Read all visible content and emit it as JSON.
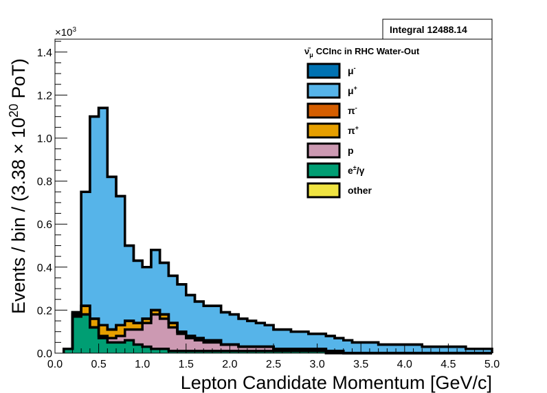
{
  "chart_data": {
    "type": "area",
    "stacked": true,
    "xlabel": "Lepton Candidate Momentum [GeV/c]",
    "ylabel": "Events / bin / (3.38 × 10^20 PoT)",
    "ylabel_prefix": "Events / bin / (3.38 ",
    "ylabel_times": "×",
    "ylabel_ten": " 10",
    "ylabel_exp": "20",
    "ylabel_suffix": " PoT)",
    "y_multiplier": "×10",
    "y_multiplier_exp": "3",
    "xlim": [
      0,
      5
    ],
    "ylim": [
      0,
      1.46
    ],
    "x_ticks": [
      "0.0",
      "0.5",
      "1.0",
      "1.5",
      "2.0",
      "2.5",
      "3.0",
      "3.5",
      "4.0",
      "4.5",
      "5.0"
    ],
    "y_ticks": [
      "0.0",
      "0.2",
      "0.4",
      "0.6",
      "0.8",
      "1.0",
      "1.2",
      "1.4"
    ],
    "legend_header": "CCInc in RHC Water-Out",
    "legend_header_symbol": "ν̄",
    "legend_header_sub": "μ",
    "stat_box": "Integral 12488.14",
    "legend_placement": "top-right",
    "bin_edges": [
      0.1,
      0.2,
      0.3,
      0.4,
      0.5,
      0.6,
      0.7,
      0.8,
      0.9,
      1.0,
      1.1,
      1.2,
      1.3,
      1.4,
      1.5,
      1.6,
      1.7,
      1.8,
      1.9,
      2.0,
      2.1,
      2.2,
      2.3,
      2.4,
      2.5,
      2.6,
      2.7,
      2.8,
      2.9,
      3.0,
      3.1,
      3.2,
      3.3,
      3.4,
      3.5,
      3.6,
      3.7,
      3.8,
      3.9,
      4.0,
      4.1,
      4.2,
      4.3,
      4.4,
      4.5,
      4.6,
      4.7,
      4.8,
      4.9,
      5.0
    ],
    "series": [
      {
        "name": "μ-",
        "label_base": "μ",
        "label_sup": "-",
        "color": "#0072b2",
        "values": [
          0,
          0,
          0,
          0,
          0,
          0,
          0,
          0,
          0,
          0,
          0,
          0,
          0,
          0,
          0,
          0,
          0,
          0,
          0,
          0,
          0,
          0,
          0,
          0,
          0,
          0,
          0,
          0,
          0,
          0,
          0,
          0,
          0,
          0,
          0,
          0,
          0,
          0,
          0,
          0,
          0,
          0,
          0,
          0,
          0,
          0,
          0,
          0,
          0
        ]
      },
      {
        "name": "μ+",
        "label_base": "μ",
        "label_sup": "+",
        "color": "#56b4e9",
        "values": [
          0.0,
          0.01,
          0.53,
          0.94,
          1.01,
          0.71,
          0.6,
          0.35,
          0.29,
          0.24,
          0.28,
          0.24,
          0.22,
          0.22,
          0.19,
          0.17,
          0.16,
          0.16,
          0.15,
          0.14,
          0.13,
          0.12,
          0.11,
          0.1,
          0.09,
          0.09,
          0.08,
          0.08,
          0.07,
          0.07,
          0.07,
          0.06,
          0.06,
          0.05,
          0.05,
          0.05,
          0.04,
          0.04,
          0.04,
          0.04,
          0.04,
          0.03,
          0.03,
          0.03,
          0.03,
          0.03,
          0.02,
          0.02,
          0.02
        ]
      },
      {
        "name": "π-",
        "label_base": "π",
        "label_sup": "-",
        "color": "#d55e00",
        "values": [
          0,
          0,
          0,
          0,
          0,
          0,
          0,
          0,
          0,
          0,
          0,
          0,
          0,
          0,
          0,
          0,
          0,
          0,
          0,
          0,
          0,
          0,
          0,
          0,
          0,
          0,
          0,
          0,
          0,
          0,
          0,
          0,
          0,
          0,
          0,
          0,
          0,
          0,
          0,
          0,
          0,
          0,
          0,
          0,
          0,
          0,
          0,
          0,
          0
        ]
      },
      {
        "name": "π+",
        "label_base": "π",
        "label_sup": "+",
        "color": "#e69f00",
        "values": [
          0.0,
          0.01,
          0.04,
          0.04,
          0.05,
          0.04,
          0.05,
          0.04,
          0.03,
          0.02,
          0.02,
          0.02,
          0.02,
          0.01,
          0.01,
          0.01,
          0.01,
          0.01,
          0.0,
          0.0,
          0.0,
          0.0,
          0.0,
          0.0,
          0.0,
          0.0,
          0.0,
          0.0,
          0.0,
          0.0,
          0.0,
          0.0,
          0.0,
          0.0,
          0.0,
          0.0,
          0.0,
          0.0,
          0.0,
          0.0,
          0.0,
          0.0,
          0.0,
          0.0,
          0.0,
          0.0,
          0.0,
          0.0,
          0.0
        ]
      },
      {
        "name": "p",
        "label_base": "p",
        "label_sup": "",
        "color": "#cc99b2",
        "values": [
          0.0,
          0.0,
          0.0,
          0.0,
          0.01,
          0.02,
          0.03,
          0.05,
          0.07,
          0.11,
          0.16,
          0.14,
          0.11,
          0.08,
          0.06,
          0.05,
          0.04,
          0.04,
          0.03,
          0.03,
          0.02,
          0.02,
          0.02,
          0.02,
          0.01,
          0.01,
          0.01,
          0.01,
          0.01,
          0.01,
          0.01,
          0.01,
          0.0,
          0.0,
          0.0,
          0.0,
          0.0,
          0.0,
          0.0,
          0.0,
          0.0,
          0.0,
          0.0,
          0.0,
          0.0,
          0.0,
          0.0,
          0.0,
          0.0
        ]
      },
      {
        "name": "e±/γ",
        "label_base": "e",
        "label_sup": "±",
        "label_tail": "/γ",
        "color": "#009e73",
        "values": [
          0.02,
          0.17,
          0.18,
          0.12,
          0.07,
          0.05,
          0.05,
          0.06,
          0.04,
          0.03,
          0.02,
          0.02,
          0.01,
          0.01,
          0.01,
          0.01,
          0.01,
          0.01,
          0.01,
          0.01,
          0.01,
          0.01,
          0.01,
          0.01,
          0.01,
          0.01,
          0.01,
          0.01,
          0.01,
          0.01,
          0.0,
          0.0,
          0.0,
          0.0,
          0.0,
          0.0,
          0.0,
          0.0,
          0.0,
          0.0,
          0.0,
          0.0,
          0.0,
          0.0,
          0.0,
          0.0,
          0.0,
          0.0,
          0.0
        ]
      },
      {
        "name": "other",
        "label_base": "other",
        "label_sup": "",
        "color": "#f0e442",
        "values": [
          0,
          0,
          0,
          0,
          0,
          0,
          0,
          0,
          0,
          0,
          0,
          0,
          0,
          0,
          0,
          0,
          0,
          0,
          0,
          0,
          0,
          0,
          0,
          0,
          0,
          0,
          0,
          0,
          0,
          0,
          0,
          0,
          0,
          0,
          0,
          0,
          0,
          0,
          0,
          0,
          0,
          0,
          0,
          0,
          0,
          0,
          0,
          0,
          0
        ]
      }
    ],
    "stack_order_bottom_to_top": [
      "e±/γ",
      "p",
      "π+",
      "π-",
      "μ-",
      "μ+",
      "other"
    ]
  }
}
